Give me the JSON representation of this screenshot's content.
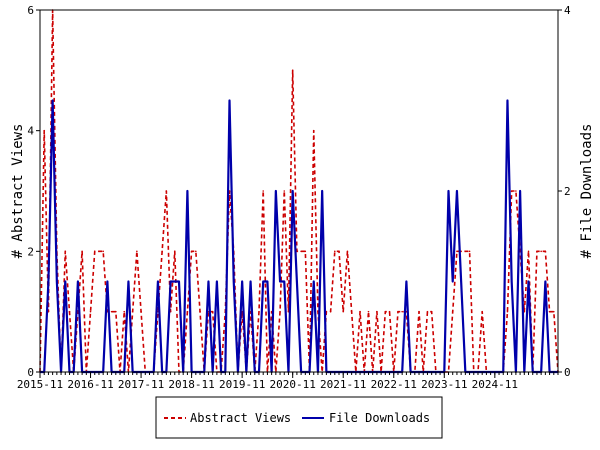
{
  "chart_data": {
    "type": "line",
    "x_tick_labels": [
      "2015-11",
      "2016-11",
      "2017-11",
      "2018-11",
      "2019-11",
      "2020-11",
      "2021-11",
      "2022-11",
      "2023-11",
      "2024-11"
    ],
    "y_left": {
      "label": "# Abstract Views",
      "ylim": [
        0,
        6
      ],
      "ticks": [
        "0",
        "2",
        "4",
        "6"
      ]
    },
    "y_right": {
      "label": "# File Downloads",
      "ylim": [
        0,
        4
      ],
      "ticks": [
        "0",
        "2",
        "4"
      ]
    },
    "legend_position": "bottom",
    "grid": false,
    "series": [
      {
        "name": "Abstract Views",
        "axis": "left",
        "color": "#cc0000",
        "style": "dashed",
        "values": [
          0,
          4,
          1,
          6,
          2,
          0,
          2,
          1,
          0,
          1,
          2,
          0,
          1,
          2,
          2,
          2,
          1,
          1,
          1,
          0,
          1,
          0,
          1,
          2,
          1,
          0,
          0,
          0,
          1,
          2,
          3,
          1,
          2,
          0,
          0,
          1,
          2,
          2,
          1,
          0,
          1,
          1,
          0,
          0,
          1,
          3,
          2,
          0,
          1,
          0,
          1,
          0,
          1,
          3,
          0,
          1,
          0,
          1,
          3,
          1,
          5,
          2,
          2,
          2,
          0,
          4,
          1,
          0,
          1,
          1,
          2,
          2,
          1,
          2,
          1,
          0,
          1,
          0,
          1,
          0,
          1,
          0,
          1,
          1,
          0,
          1,
          1,
          1,
          0,
          0,
          1,
          0,
          1,
          1,
          0,
          0,
          0,
          0,
          1,
          2,
          2,
          2,
          2,
          0,
          0,
          1,
          0,
          0,
          0,
          0,
          0,
          1,
          3,
          3,
          2,
          1,
          2,
          0,
          2,
          2,
          2,
          1,
          1,
          0
        ]
      },
      {
        "name": "File Downloads",
        "axis": "right",
        "color": "#0000aa",
        "style": "solid",
        "values": [
          0,
          0,
          1,
          3,
          1,
          0,
          1,
          0,
          0,
          1,
          0,
          0,
          0,
          0,
          0,
          0,
          1,
          0,
          0,
          0,
          0,
          1,
          0,
          0,
          0,
          0,
          0,
          0,
          1,
          0,
          0,
          1,
          1,
          1,
          0,
          2,
          0,
          0,
          0,
          0,
          1,
          0,
          1,
          0,
          0,
          3,
          1,
          0,
          1,
          0,
          1,
          0,
          0,
          1,
          1,
          0,
          2,
          1,
          1,
          0,
          2,
          1,
          0,
          0,
          0,
          1,
          0,
          2,
          0,
          0,
          0,
          0,
          0,
          0,
          0,
          0,
          0,
          0,
          0,
          0,
          0,
          0,
          0,
          0,
          0,
          0,
          0,
          1,
          0,
          0,
          0,
          0,
          0,
          0,
          0,
          0,
          0,
          2,
          1,
          2,
          1,
          0,
          0,
          0,
          0,
          0,
          0,
          0,
          0,
          0,
          0,
          3,
          1,
          0,
          2,
          0,
          1,
          0,
          0,
          0,
          1,
          0,
          0,
          0
        ]
      }
    ]
  }
}
